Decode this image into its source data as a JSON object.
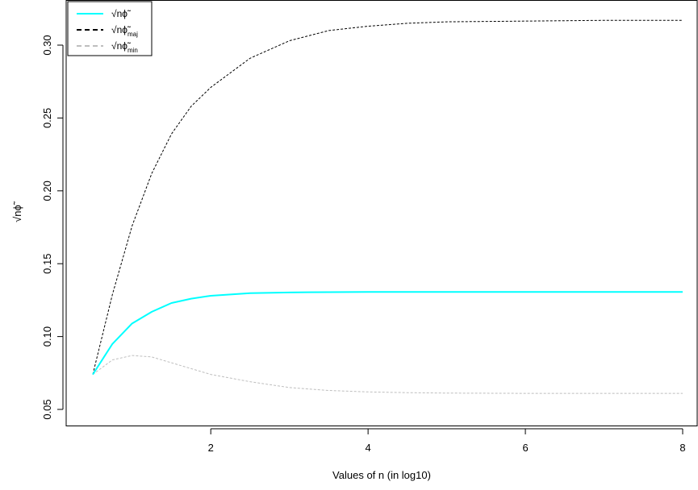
{
  "chart_data": {
    "type": "line",
    "xlabel": "Values of n (in log10)",
    "ylabel": "√nϕ̃",
    "xlim": [
      0.5,
      8
    ],
    "ylim": [
      0.05,
      0.32
    ],
    "x_ticks": [
      2,
      4,
      6,
      8
    ],
    "y_ticks": [
      0.05,
      0.1,
      0.15,
      0.2,
      0.25,
      0.3
    ],
    "x_tick_labels": [
      "2",
      "4",
      "6",
      "8"
    ],
    "y_tick_labels": [
      "0.05",
      "0.10",
      "0.15",
      "0.20",
      "0.25",
      "0.30"
    ],
    "grid": false,
    "legend_position": "top-left",
    "x": [
      0.5,
      0.75,
      1.0,
      1.25,
      1.5,
      1.75,
      2.0,
      2.5,
      3.0,
      3.5,
      4.0,
      4.5,
      5.0,
      6.0,
      7.0,
      8.0
    ],
    "series": [
      {
        "name": "√nϕ̃",
        "style": "solid",
        "color": "#00FFFF",
        "values": [
          0.074,
          0.095,
          0.109,
          0.117,
          0.123,
          0.126,
          0.128,
          0.1298,
          0.1303,
          0.1305,
          0.1306,
          0.1306,
          0.1306,
          0.1306,
          0.1306,
          0.1306
        ]
      },
      {
        "name": "√nϕ̃maj",
        "style": "dashed",
        "color": "#000000",
        "values": [
          0.074,
          0.129,
          0.176,
          0.212,
          0.239,
          0.258,
          0.271,
          0.291,
          0.303,
          0.31,
          0.313,
          0.315,
          0.316,
          0.3165,
          0.317,
          0.317
        ]
      },
      {
        "name": "√nϕ̃min",
        "style": "dashed",
        "color": "#BEBEBE",
        "values": [
          0.074,
          0.084,
          0.087,
          0.086,
          0.082,
          0.078,
          0.074,
          0.069,
          0.065,
          0.063,
          0.062,
          0.0615,
          0.0612,
          0.061,
          0.061,
          0.061
        ]
      }
    ]
  }
}
